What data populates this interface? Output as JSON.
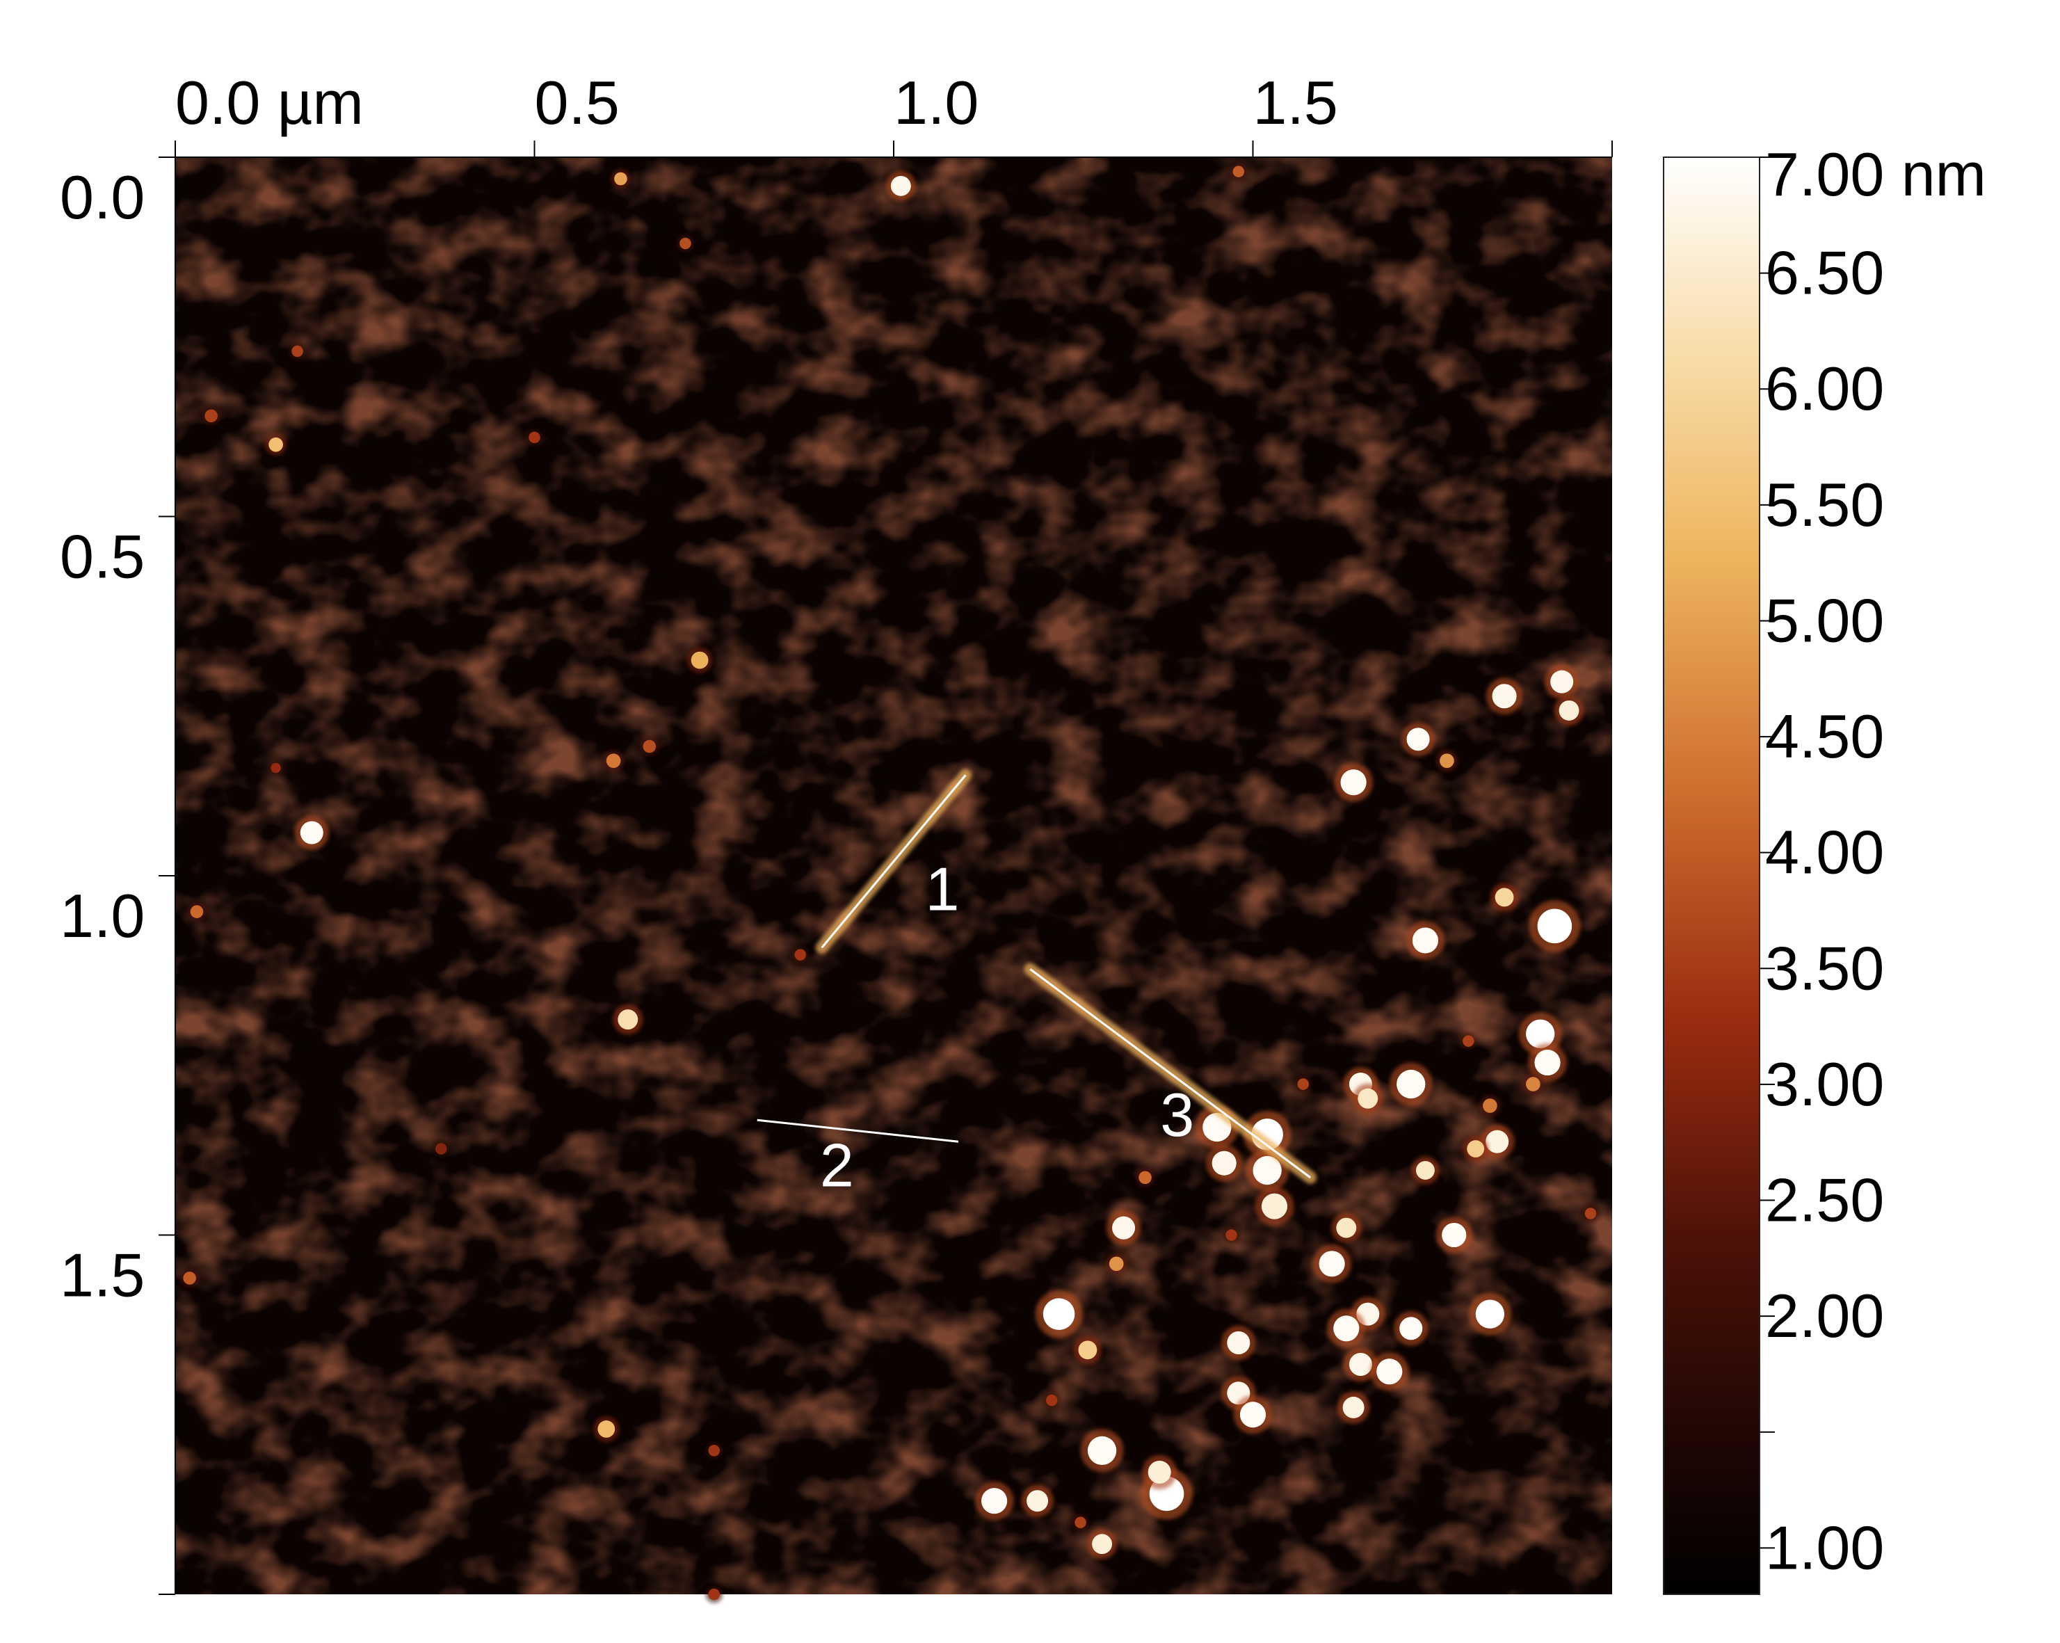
{
  "image": {
    "kind": "AFM height map",
    "x_unit": "µm",
    "y_unit": "µm",
    "z_unit": "nm"
  },
  "x_axis": {
    "ticks": [
      {
        "value": 0.0,
        "label": "0.0 µm"
      },
      {
        "value": 0.5,
        "label": "0.5"
      },
      {
        "value": 1.0,
        "label": "1.0"
      },
      {
        "value": 1.5,
        "label": "1.5"
      },
      {
        "value": 2.0,
        "label": ""
      }
    ],
    "range": [
      0.0,
      2.0
    ]
  },
  "y_axis": {
    "ticks": [
      {
        "value": 0.0,
        "label": "0.0"
      },
      {
        "value": 0.5,
        "label": "0.5"
      },
      {
        "value": 1.0,
        "label": "1.0"
      },
      {
        "value": 1.5,
        "label": "1.5"
      },
      {
        "value": 2.0,
        "label": ""
      }
    ],
    "range": [
      0.0,
      2.0
    ]
  },
  "colorbar": {
    "range_nm": [
      0.8,
      7.0
    ],
    "ticks": [
      {
        "value": 7.0,
        "label": "7.00 nm"
      },
      {
        "value": 6.5,
        "label": "6.50"
      },
      {
        "value": 6.0,
        "label": "6.00"
      },
      {
        "value": 5.5,
        "label": "5.50"
      },
      {
        "value": 5.0,
        "label": "5.00"
      },
      {
        "value": 4.5,
        "label": "4.50"
      },
      {
        "value": 4.0,
        "label": "4.00"
      },
      {
        "value": 3.5,
        "label": "3.50"
      },
      {
        "value": 3.0,
        "label": "3.00"
      },
      {
        "value": 2.5,
        "label": "2.50"
      },
      {
        "value": 2.0,
        "label": "2.00"
      },
      {
        "value": 1.5,
        "label": ""
      },
      {
        "value": 1.0,
        "label": "1.00"
      }
    ],
    "colors": [
      "#000000",
      "#2a0a04",
      "#6a1a08",
      "#b03818",
      "#d8803a",
      "#f0c070",
      "#f8e0b0",
      "#ffffff"
    ]
  },
  "profiles": [
    {
      "label": "1",
      "from": [
        0.9,
        1.1
      ],
      "to": [
        1.1,
        0.86
      ]
    },
    {
      "label": "2",
      "from": [
        0.81,
        1.34
      ],
      "to": [
        1.09,
        1.37
      ]
    },
    {
      "label": "3",
      "from": [
        1.19,
        1.13
      ],
      "to": [
        1.58,
        1.42
      ]
    }
  ],
  "particles": [
    [
      1.01,
      0.04,
      0.014,
      6.8
    ],
    [
      0.62,
      0.03,
      0.009,
      5.0
    ],
    [
      1.48,
      0.02,
      0.008,
      4.0
    ],
    [
      0.71,
      0.12,
      0.008,
      3.8
    ],
    [
      0.17,
      0.27,
      0.008,
      3.6
    ],
    [
      0.05,
      0.36,
      0.009,
      3.6
    ],
    [
      0.14,
      0.4,
      0.01,
      5.5
    ],
    [
      0.5,
      0.39,
      0.008,
      3.4
    ],
    [
      0.73,
      0.7,
      0.012,
      5.2
    ],
    [
      0.61,
      0.84,
      0.01,
      4.4
    ],
    [
      0.66,
      0.82,
      0.009,
      3.8
    ],
    [
      0.19,
      0.94,
      0.016,
      6.9
    ],
    [
      0.14,
      0.85,
      0.007,
      3.2
    ],
    [
      0.03,
      1.05,
      0.009,
      4.2
    ],
    [
      0.63,
      1.2,
      0.014,
      6.2
    ],
    [
      0.87,
      1.11,
      0.008,
      3.4
    ],
    [
      0.37,
      1.38,
      0.008,
      3.0
    ],
    [
      0.02,
      1.56,
      0.009,
      4.0
    ],
    [
      0.6,
      1.77,
      0.012,
      5.4
    ],
    [
      0.75,
      1.8,
      0.008,
      3.4
    ],
    [
      0.75,
      2.0,
      0.008,
      3.4
    ],
    [
      1.73,
      0.81,
      0.016,
      6.9
    ],
    [
      1.85,
      0.75,
      0.017,
      6.8
    ],
    [
      1.93,
      0.73,
      0.016,
      6.8
    ],
    [
      1.94,
      0.77,
      0.014,
      6.6
    ],
    [
      1.64,
      0.87,
      0.018,
      6.9
    ],
    [
      1.77,
      0.84,
      0.01,
      4.8
    ],
    [
      1.85,
      1.03,
      0.013,
      6.0
    ],
    [
      1.74,
      1.09,
      0.018,
      6.9
    ],
    [
      1.92,
      1.07,
      0.024,
      7.0
    ],
    [
      1.9,
      1.22,
      0.02,
      7.0
    ],
    [
      1.91,
      1.26,
      0.018,
      6.9
    ],
    [
      1.65,
      1.29,
      0.016,
      6.8
    ],
    [
      1.72,
      1.29,
      0.02,
      6.9
    ],
    [
      1.66,
      1.31,
      0.014,
      6.4
    ],
    [
      1.45,
      1.35,
      0.02,
      6.9
    ],
    [
      1.52,
      1.36,
      0.022,
      7.0
    ],
    [
      1.46,
      1.4,
      0.017,
      6.8
    ],
    [
      1.52,
      1.41,
      0.02,
      6.9
    ],
    [
      1.53,
      1.46,
      0.018,
      6.6
    ],
    [
      1.74,
      1.41,
      0.013,
      6.4
    ],
    [
      1.84,
      1.37,
      0.016,
      6.7
    ],
    [
      1.81,
      1.38,
      0.012,
      5.8
    ],
    [
      1.63,
      1.49,
      0.014,
      6.4
    ],
    [
      1.78,
      1.5,
      0.017,
      6.9
    ],
    [
      1.61,
      1.54,
      0.018,
      6.9
    ],
    [
      1.66,
      1.61,
      0.016,
      6.8
    ],
    [
      1.63,
      1.63,
      0.018,
      6.9
    ],
    [
      1.72,
      1.63,
      0.016,
      6.9
    ],
    [
      1.83,
      1.61,
      0.02,
      7.0
    ],
    [
      1.65,
      1.68,
      0.016,
      6.8
    ],
    [
      1.69,
      1.69,
      0.018,
      6.9
    ],
    [
      1.64,
      1.74,
      0.015,
      6.7
    ],
    [
      1.48,
      1.65,
      0.016,
      6.8
    ],
    [
      1.48,
      1.72,
      0.016,
      6.8
    ],
    [
      1.5,
      1.75,
      0.018,
      6.9
    ],
    [
      1.32,
      1.49,
      0.016,
      6.8
    ],
    [
      1.31,
      1.54,
      0.01,
      4.8
    ],
    [
      1.23,
      1.61,
      0.022,
      7.0
    ],
    [
      1.27,
      1.66,
      0.013,
      5.8
    ],
    [
      1.29,
      1.8,
      0.02,
      6.9
    ],
    [
      1.38,
      1.86,
      0.024,
      7.0
    ],
    [
      1.37,
      1.83,
      0.016,
      6.6
    ],
    [
      1.14,
      1.87,
      0.018,
      6.9
    ],
    [
      1.2,
      1.87,
      0.015,
      6.7
    ],
    [
      1.29,
      1.93,
      0.014,
      6.6
    ],
    [
      1.26,
      1.9,
      0.008,
      3.6
    ],
    [
      1.22,
      1.73,
      0.008,
      3.4
    ],
    [
      1.35,
      1.42,
      0.009,
      4.2
    ],
    [
      1.83,
      1.32,
      0.01,
      4.4
    ],
    [
      1.89,
      1.29,
      0.01,
      4.6
    ],
    [
      1.8,
      1.23,
      0.008,
      3.6
    ],
    [
      1.97,
      1.47,
      0.008,
      3.6
    ],
    [
      1.47,
      1.5,
      0.008,
      3.4
    ],
    [
      1.57,
      1.29,
      0.008,
      3.6
    ]
  ]
}
